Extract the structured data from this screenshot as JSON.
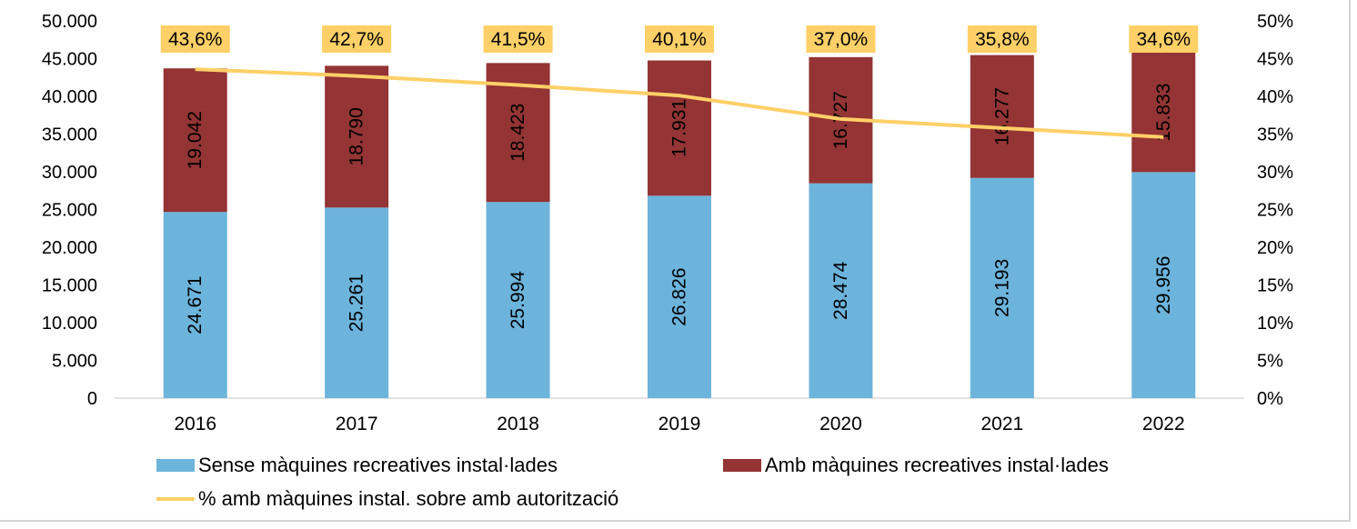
{
  "chart_data": {
    "type": "bar",
    "stacked": true,
    "categories": [
      "2016",
      "2017",
      "2018",
      "2019",
      "2020",
      "2021",
      "2022"
    ],
    "series": [
      {
        "name": "Sense màquines recreatives instal·lades",
        "axis": "left",
        "values": [
          24671,
          25261,
          25994,
          26826,
          28474,
          29193,
          29956
        ],
        "labels": [
          "24.671",
          "25.261",
          "25.994",
          "26.826",
          "28.474",
          "29.193",
          "29.956"
        ],
        "color": "#6cb4dc"
      },
      {
        "name": "Amb màquines recreatives instal·lades",
        "axis": "left",
        "values": [
          19042,
          18790,
          18423,
          17931,
          16727,
          16277,
          15833
        ],
        "labels": [
          "19.042",
          "18.790",
          "18.423",
          "17.931",
          "16.727",
          "16.277",
          "15.833"
        ],
        "color": "#943434"
      },
      {
        "name": "% amb màquines instal. sobre amb autorització",
        "type": "line",
        "axis": "right",
        "values": [
          43.6,
          42.7,
          41.5,
          40.1,
          37.0,
          35.8,
          34.6
        ],
        "labels": [
          "43,6%",
          "42,7%",
          "41,5%",
          "40,1%",
          "37,0%",
          "35,8%",
          "34,6%"
        ],
        "color": "#ffd067"
      }
    ],
    "ylim": [
      0,
      50000
    ],
    "yticks": [
      "0",
      "5.000",
      "10.000",
      "15.000",
      "20.000",
      "25.000",
      "30.000",
      "35.000",
      "40.000",
      "45.000",
      "50.000"
    ],
    "y2lim": [
      0,
      50
    ],
    "y2ticks": [
      "0%",
      "5%",
      "10%",
      "15%",
      "20%",
      "25%",
      "30%",
      "35%",
      "40%",
      "45%",
      "50%"
    ],
    "grid": false,
    "legend": "bottom",
    "label_box_color": "#ffd067"
  }
}
